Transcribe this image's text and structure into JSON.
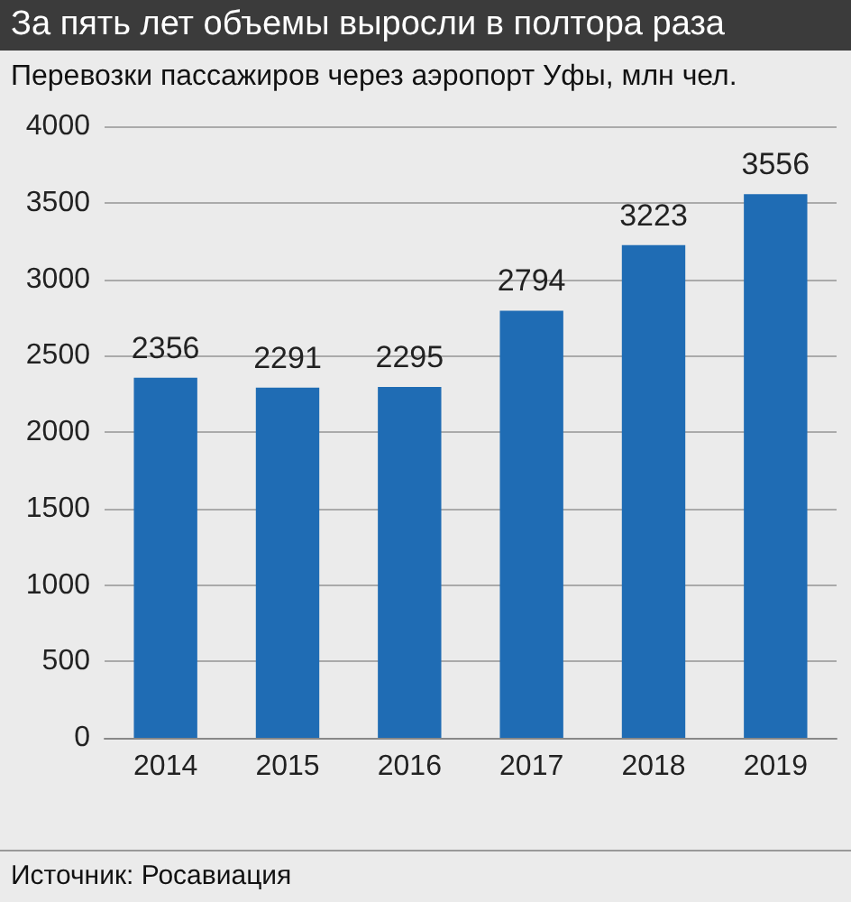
{
  "chart_data": {
    "type": "bar",
    "title": "За пять лет объемы выросли в полтора раза",
    "subtitle": "Перевозки пассажиров через аэропорт Уфы, млн чел.",
    "categories": [
      "2014",
      "2015",
      "2016",
      "2017",
      "2018",
      "2019"
    ],
    "values": [
      2356,
      2291,
      2295,
      2794,
      3223,
      3556
    ],
    "color": "#1f6cb4",
    "ylim": [
      0,
      4000
    ],
    "yticks": [
      0,
      500,
      1000,
      1500,
      2000,
      2500,
      3000,
      3500,
      4000
    ],
    "grid": "y",
    "data_labels": true,
    "annotations": [
      "Источник: Росавиация"
    ]
  }
}
